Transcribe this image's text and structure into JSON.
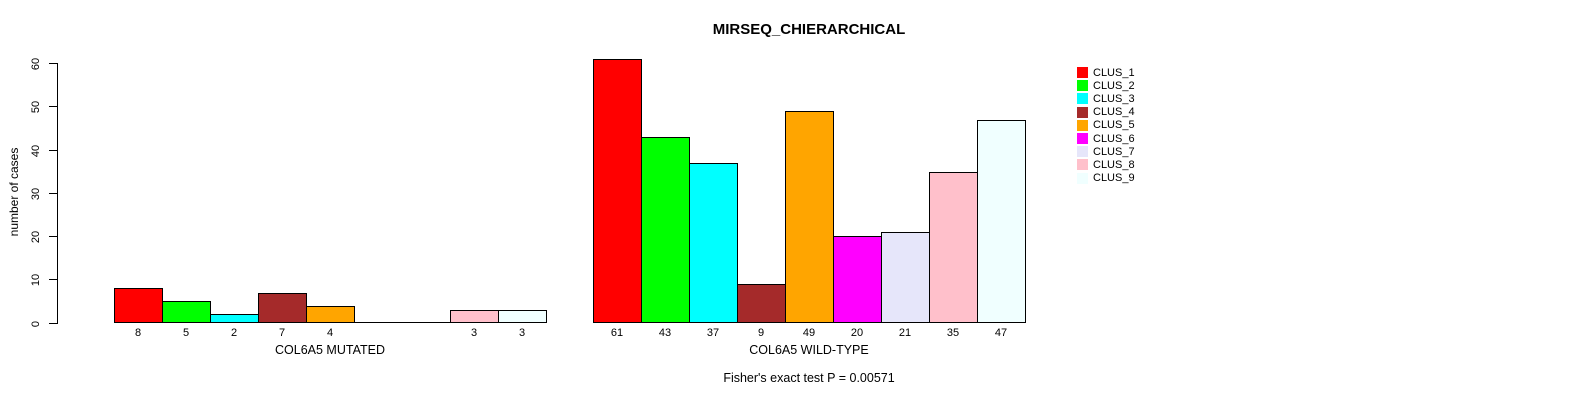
{
  "chart_data": {
    "type": "bar",
    "title": "MIRSEQ_CHIERARCHICAL",
    "ylabel": "number of cases",
    "subtitle": "Fisher's exact test P = 0.00571",
    "ylim": [
      0,
      60
    ],
    "yticks": [
      0,
      10,
      20,
      30,
      40,
      50,
      60
    ],
    "grid": false,
    "legend_position": "right",
    "categories": [
      "CLUS_1",
      "CLUS_2",
      "CLUS_3",
      "CLUS_4",
      "CLUS_5",
      "CLUS_6",
      "CLUS_7",
      "CLUS_8",
      "CLUS_9"
    ],
    "colors": [
      "#FF0000",
      "#00FF00",
      "#00FFFF",
      "#A52A2A",
      "#FFA500",
      "#FF00FF",
      "#E6E6FA",
      "#FFC0CB",
      "#F0FFFF"
    ],
    "series": [
      {
        "name": "COL6A5 MUTATED",
        "values": [
          8,
          5,
          2,
          7,
          4,
          0,
          0,
          3,
          3
        ]
      },
      {
        "name": "COL6A5 WILD-TYPE",
        "values": [
          61,
          43,
          37,
          9,
          49,
          20,
          21,
          35,
          47
        ]
      }
    ],
    "legend": {
      "entries": [
        {
          "label": "CLUS_1",
          "color": "#FF0000"
        },
        {
          "label": "CLUS_2",
          "color": "#00FF00"
        },
        {
          "label": "CLUS_3",
          "color": "#00FFFF"
        },
        {
          "label": "CLUS_4",
          "color": "#A52A2A"
        },
        {
          "label": "CLUS_5",
          "color": "#FFA500"
        },
        {
          "label": "CLUS_6",
          "color": "#FF00FF"
        },
        {
          "label": "CLUS_7",
          "color": "#E6E6FA"
        },
        {
          "label": "CLUS_8",
          "color": "#FFC0CB"
        },
        {
          "label": "CLUS_9",
          "color": "#F0FFFF"
        }
      ]
    }
  }
}
